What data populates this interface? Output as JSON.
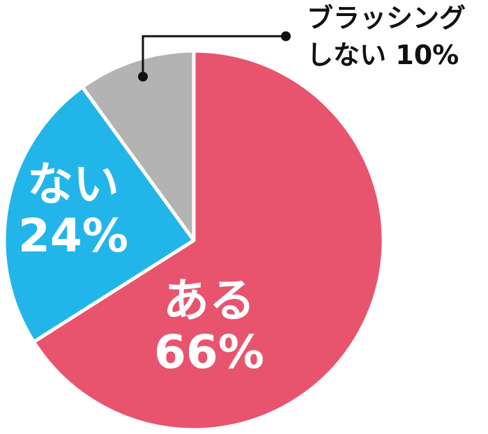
{
  "chart_data": {
    "type": "pie",
    "categories": [
      "ある",
      "ない",
      "ブラッシングしない"
    ],
    "values": [
      66,
      24,
      10
    ],
    "value_labels": [
      "66%",
      "24%",
      "10%"
    ],
    "colors": [
      "#e8546e",
      "#22b5ea",
      "#b3b3b3"
    ]
  }
}
